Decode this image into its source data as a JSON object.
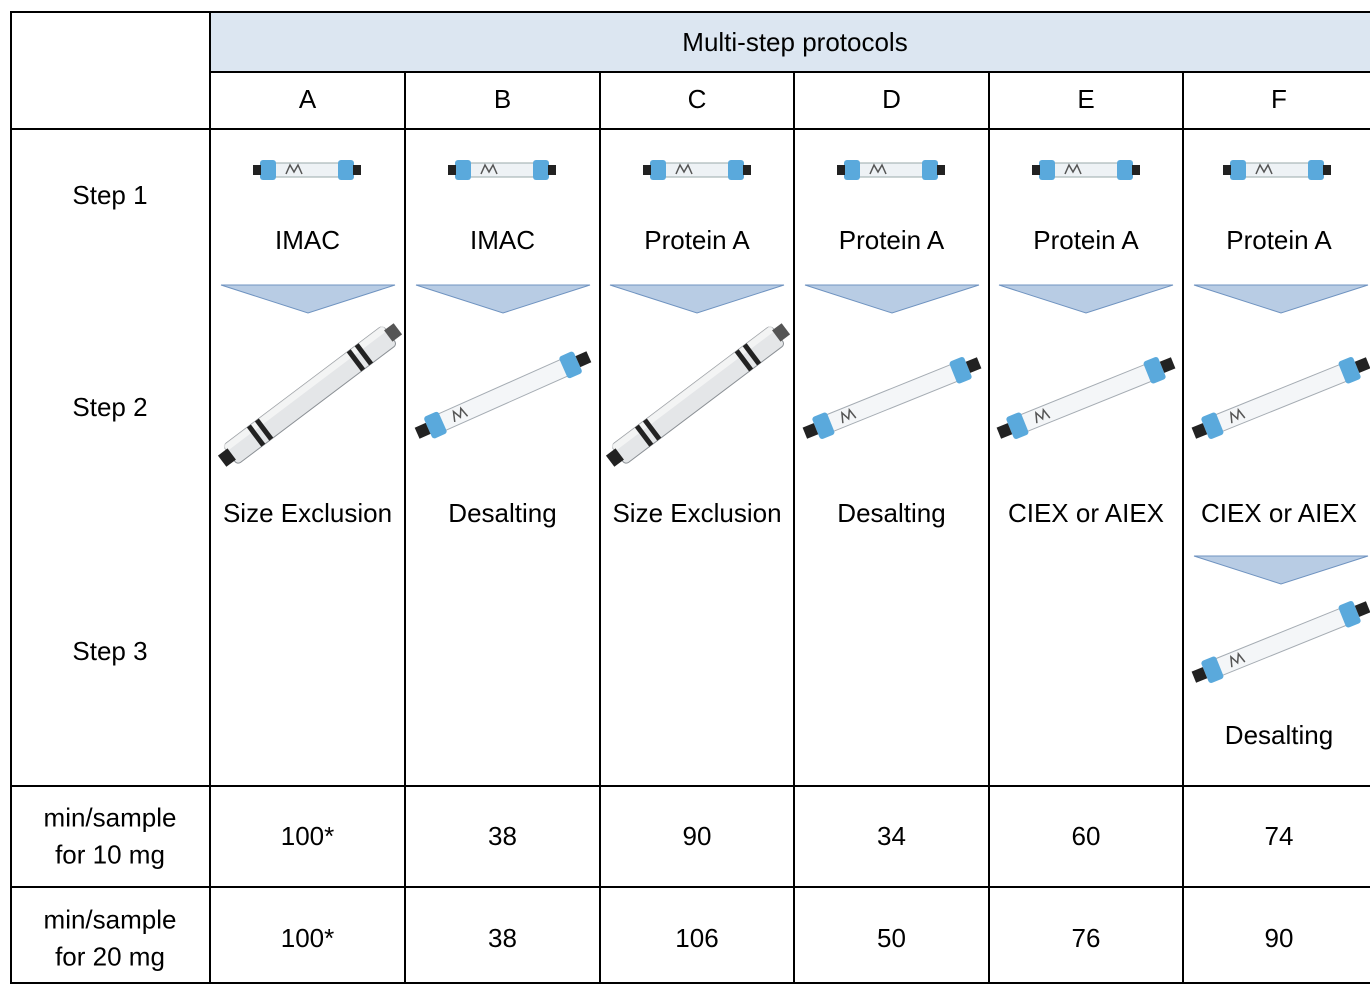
{
  "header": {
    "title": "Multi-step protocols"
  },
  "columns": [
    "A",
    "B",
    "C",
    "D",
    "E",
    "F"
  ],
  "step_labels": [
    "Step 1",
    "Step 2",
    "Step 3"
  ],
  "protocols": [
    [
      "IMAC",
      "Size Exclusion"
    ],
    [
      "IMAC",
      "Desalting"
    ],
    [
      "Protein A",
      "Size Exclusion"
    ],
    [
      "Protein A",
      "Desalting"
    ],
    [
      "Protein A",
      "CIEX or AIEX"
    ],
    [
      "Protein A",
      "CIEX or AIEX",
      "Desalting"
    ]
  ],
  "time_rows": [
    {
      "label": [
        "min/sample",
        "for 10 mg"
      ],
      "values": [
        "100*",
        38,
        90,
        34,
        60,
        74
      ],
      "colors": [
        "#1f3864",
        "#1f3864",
        "#ff0000",
        "#ff0000",
        "#ff0000",
        "#ff0000"
      ]
    },
    {
      "label": [
        "min/sample",
        "for 20 mg"
      ],
      "values": [
        "100*",
        38,
        106,
        50,
        76,
        90
      ],
      "colors": [
        "#1f3864",
        "#1f3864",
        "#1f3864",
        "#1f3864",
        "#1f3864",
        "#1f3864"
      ]
    }
  ]
}
